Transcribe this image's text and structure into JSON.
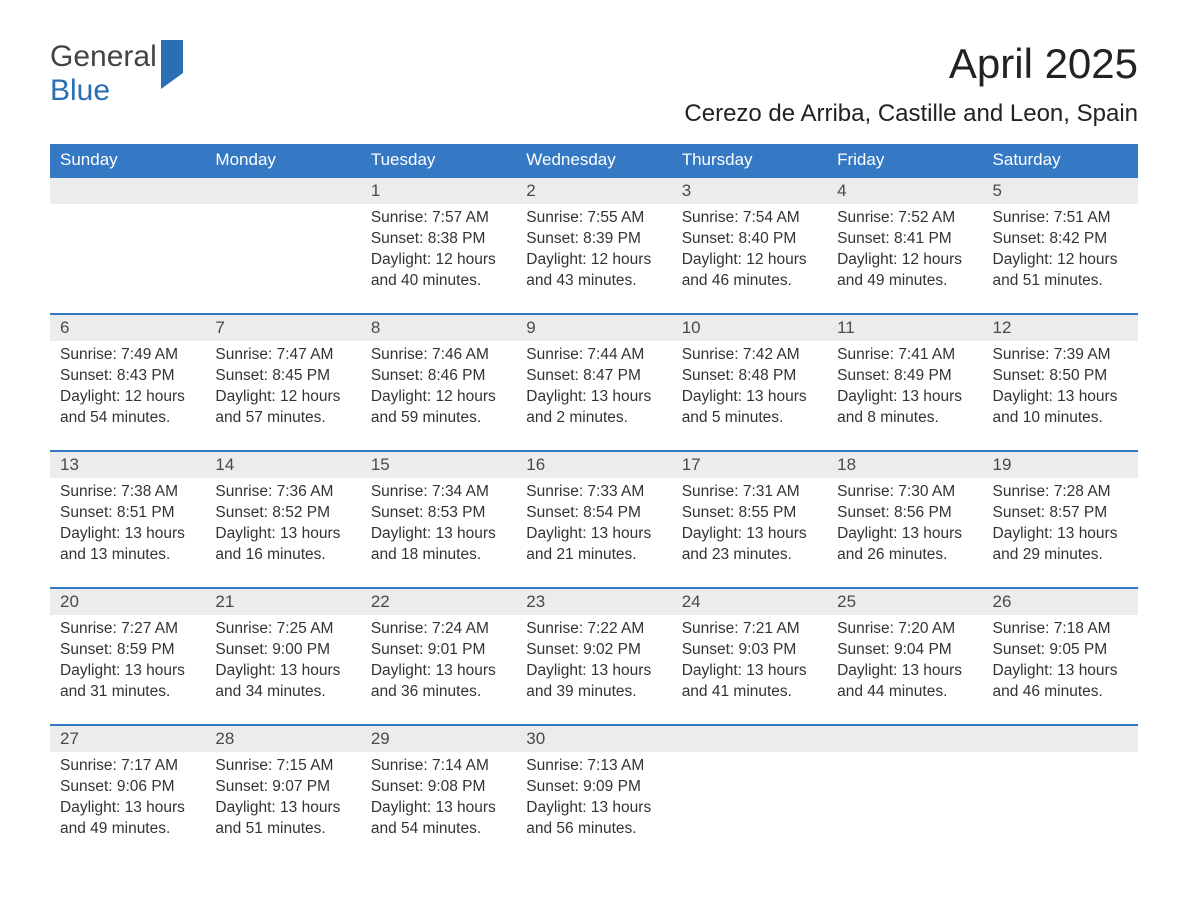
{
  "logo": {
    "part1": "General",
    "part2": "Blue"
  },
  "title": "April 2025",
  "location": "Cerezo de Arriba, Castille and Leon, Spain",
  "colors": {
    "header_bg": "#3578c4",
    "header_text": "#ffffff",
    "daynum_bg": "#ececec",
    "row_border": "#3578c4",
    "logo_blue": "#2a6fb5",
    "body_text": "#333333",
    "page_bg": "#ffffff"
  },
  "weekdays": [
    "Sunday",
    "Monday",
    "Tuesday",
    "Wednesday",
    "Thursday",
    "Friday",
    "Saturday"
  ],
  "labels": {
    "sunrise": "Sunrise:",
    "sunset": "Sunset:",
    "daylight": "Daylight:"
  },
  "weeks": [
    [
      null,
      null,
      {
        "n": "1",
        "sunrise": "7:57 AM",
        "sunset": "8:38 PM",
        "daylight": "12 hours and 40 minutes."
      },
      {
        "n": "2",
        "sunrise": "7:55 AM",
        "sunset": "8:39 PM",
        "daylight": "12 hours and 43 minutes."
      },
      {
        "n": "3",
        "sunrise": "7:54 AM",
        "sunset": "8:40 PM",
        "daylight": "12 hours and 46 minutes."
      },
      {
        "n": "4",
        "sunrise": "7:52 AM",
        "sunset": "8:41 PM",
        "daylight": "12 hours and 49 minutes."
      },
      {
        "n": "5",
        "sunrise": "7:51 AM",
        "sunset": "8:42 PM",
        "daylight": "12 hours and 51 minutes."
      }
    ],
    [
      {
        "n": "6",
        "sunrise": "7:49 AM",
        "sunset": "8:43 PM",
        "daylight": "12 hours and 54 minutes."
      },
      {
        "n": "7",
        "sunrise": "7:47 AM",
        "sunset": "8:45 PM",
        "daylight": "12 hours and 57 minutes."
      },
      {
        "n": "8",
        "sunrise": "7:46 AM",
        "sunset": "8:46 PM",
        "daylight": "12 hours and 59 minutes."
      },
      {
        "n": "9",
        "sunrise": "7:44 AM",
        "sunset": "8:47 PM",
        "daylight": "13 hours and 2 minutes."
      },
      {
        "n": "10",
        "sunrise": "7:42 AM",
        "sunset": "8:48 PM",
        "daylight": "13 hours and 5 minutes."
      },
      {
        "n": "11",
        "sunrise": "7:41 AM",
        "sunset": "8:49 PM",
        "daylight": "13 hours and 8 minutes."
      },
      {
        "n": "12",
        "sunrise": "7:39 AM",
        "sunset": "8:50 PM",
        "daylight": "13 hours and 10 minutes."
      }
    ],
    [
      {
        "n": "13",
        "sunrise": "7:38 AM",
        "sunset": "8:51 PM",
        "daylight": "13 hours and 13 minutes."
      },
      {
        "n": "14",
        "sunrise": "7:36 AM",
        "sunset": "8:52 PM",
        "daylight": "13 hours and 16 minutes."
      },
      {
        "n": "15",
        "sunrise": "7:34 AM",
        "sunset": "8:53 PM",
        "daylight": "13 hours and 18 minutes."
      },
      {
        "n": "16",
        "sunrise": "7:33 AM",
        "sunset": "8:54 PM",
        "daylight": "13 hours and 21 minutes."
      },
      {
        "n": "17",
        "sunrise": "7:31 AM",
        "sunset": "8:55 PM",
        "daylight": "13 hours and 23 minutes."
      },
      {
        "n": "18",
        "sunrise": "7:30 AM",
        "sunset": "8:56 PM",
        "daylight": "13 hours and 26 minutes."
      },
      {
        "n": "19",
        "sunrise": "7:28 AM",
        "sunset": "8:57 PM",
        "daylight": "13 hours and 29 minutes."
      }
    ],
    [
      {
        "n": "20",
        "sunrise": "7:27 AM",
        "sunset": "8:59 PM",
        "daylight": "13 hours and 31 minutes."
      },
      {
        "n": "21",
        "sunrise": "7:25 AM",
        "sunset": "9:00 PM",
        "daylight": "13 hours and 34 minutes."
      },
      {
        "n": "22",
        "sunrise": "7:24 AM",
        "sunset": "9:01 PM",
        "daylight": "13 hours and 36 minutes."
      },
      {
        "n": "23",
        "sunrise": "7:22 AM",
        "sunset": "9:02 PM",
        "daylight": "13 hours and 39 minutes."
      },
      {
        "n": "24",
        "sunrise": "7:21 AM",
        "sunset": "9:03 PM",
        "daylight": "13 hours and 41 minutes."
      },
      {
        "n": "25",
        "sunrise": "7:20 AM",
        "sunset": "9:04 PM",
        "daylight": "13 hours and 44 minutes."
      },
      {
        "n": "26",
        "sunrise": "7:18 AM",
        "sunset": "9:05 PM",
        "daylight": "13 hours and 46 minutes."
      }
    ],
    [
      {
        "n": "27",
        "sunrise": "7:17 AM",
        "sunset": "9:06 PM",
        "daylight": "13 hours and 49 minutes."
      },
      {
        "n": "28",
        "sunrise": "7:15 AM",
        "sunset": "9:07 PM",
        "daylight": "13 hours and 51 minutes."
      },
      {
        "n": "29",
        "sunrise": "7:14 AM",
        "sunset": "9:08 PM",
        "daylight": "13 hours and 54 minutes."
      },
      {
        "n": "30",
        "sunrise": "7:13 AM",
        "sunset": "9:09 PM",
        "daylight": "13 hours and 56 minutes."
      },
      null,
      null,
      null
    ]
  ]
}
